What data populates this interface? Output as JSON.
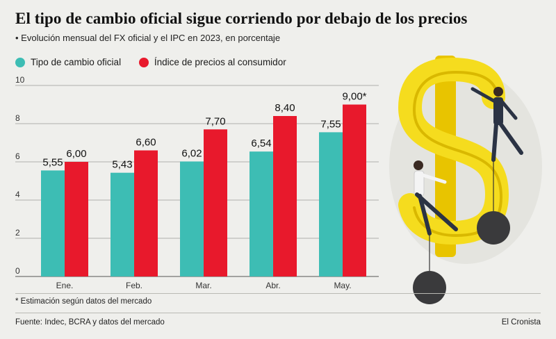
{
  "title": "El tipo de cambio oficial sigue corriendo por debajo de los precios",
  "subtitle": "• Evolución mensual del FX oficial y el IPC en 2023, en porcentaje",
  "footnote": "* Estimación según datos del mercado",
  "source": "Fuente: Indec, BCRA y datos del mercado",
  "brand": "El Cronista",
  "colors": {
    "teal": "#3dbdb4",
    "red": "#e8192c",
    "background": "#efefec"
  },
  "chart_data": {
    "type": "bar",
    "categories": [
      "Ene.",
      "Feb.",
      "Mar.",
      "Abr.",
      "May."
    ],
    "series": [
      {
        "name": "Tipo de cambio oficial",
        "color": "#3dbdb4",
        "values": [
          5.55,
          5.43,
          6.02,
          6.54,
          7.55
        ],
        "labels": [
          "5,55",
          "5,43",
          "6,02",
          "6,54",
          "7,55"
        ]
      },
      {
        "name": "Índice de precios al consumidor",
        "color": "#e8192c",
        "values": [
          6.0,
          6.6,
          7.7,
          8.4,
          9.0
        ],
        "labels": [
          "6,00",
          "6,60",
          "7,70",
          "8,40",
          "9,00*"
        ]
      }
    ],
    "yticks": [
      "0",
      "2",
      "4",
      "6",
      "8",
      "10"
    ],
    "ylim": [
      0,
      10
    ],
    "grid": true,
    "legend": "top-left"
  }
}
